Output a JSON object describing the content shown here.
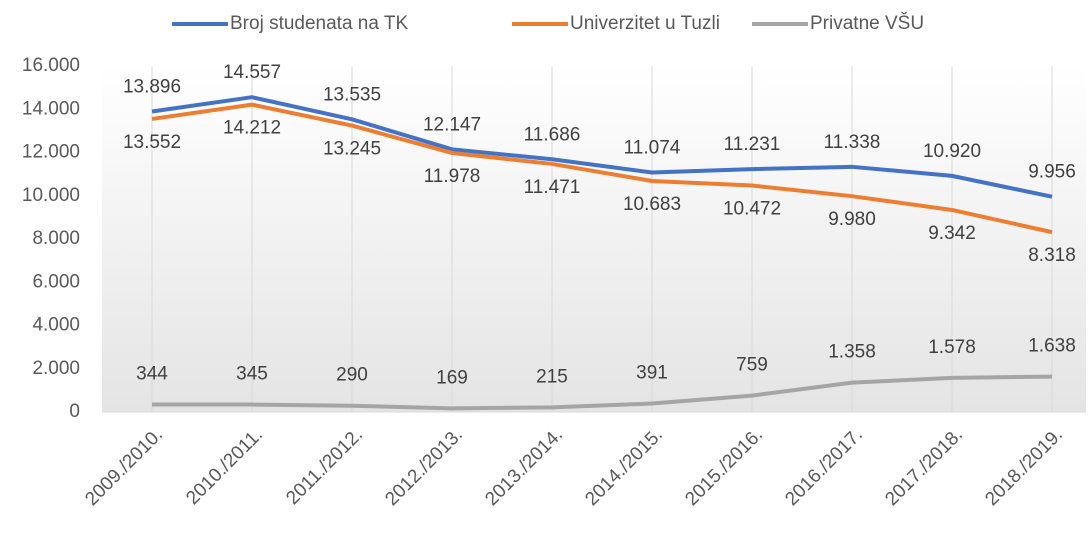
{
  "chart_data": {
    "type": "line",
    "categories": [
      "2009./2010.",
      "2010./2011.",
      "2011./2012.",
      "2012./2013.",
      "2013./2014.",
      "2014./2015.",
      "2015./2016.",
      "2016./2017.",
      "2017./2018.",
      "2018./2019."
    ],
    "series": [
      {
        "name": "Broj studenata na TK",
        "color": "#4472c4",
        "values": [
          13896,
          14557,
          13535,
          12147,
          11686,
          11074,
          11231,
          11338,
          10920,
          9956
        ],
        "value_labels": [
          "13.896",
          "14.557",
          "13.535",
          "12.147",
          "11.686",
          "11.074",
          "11.231",
          "11.338",
          "10.920",
          "9.956"
        ]
      },
      {
        "name": "Univerzitet u Tuzli",
        "color": "#ed7d31",
        "values": [
          13552,
          14212,
          13245,
          11978,
          11471,
          10683,
          10472,
          9980,
          9342,
          8318
        ],
        "value_labels": [
          "13.552",
          "14.212",
          "13.245",
          "11.978",
          "11.471",
          "10.683",
          "10.472",
          "9.980",
          "9.342",
          "8.318"
        ]
      },
      {
        "name": "Privatne VŠU",
        "color": "#a5a5a5",
        "values": [
          344,
          345,
          290,
          169,
          215,
          391,
          759,
          1358,
          1578,
          1638
        ],
        "value_labels": [
          "344",
          "345",
          "290",
          "169",
          "215",
          "391",
          "759",
          "1.358",
          "1.578",
          "1.638"
        ]
      }
    ],
    "ylim": [
      0,
      16000
    ],
    "yticks": [
      0,
      {
        "value": 2000,
        "label": "2.000"
      },
      {
        "value": 4000,
        "label": "4.000"
      },
      {
        "value": 6000,
        "label": "6.000"
      },
      {
        "value": 8000,
        "label": "8.000"
      },
      {
        "value": 10000,
        "label": "10.000"
      },
      {
        "value": 12000,
        "label": "12.000"
      },
      {
        "value": 14000,
        "label": "14.000"
      },
      {
        "value": 16000,
        "label": "16.000"
      }
    ],
    "legend": "top"
  }
}
